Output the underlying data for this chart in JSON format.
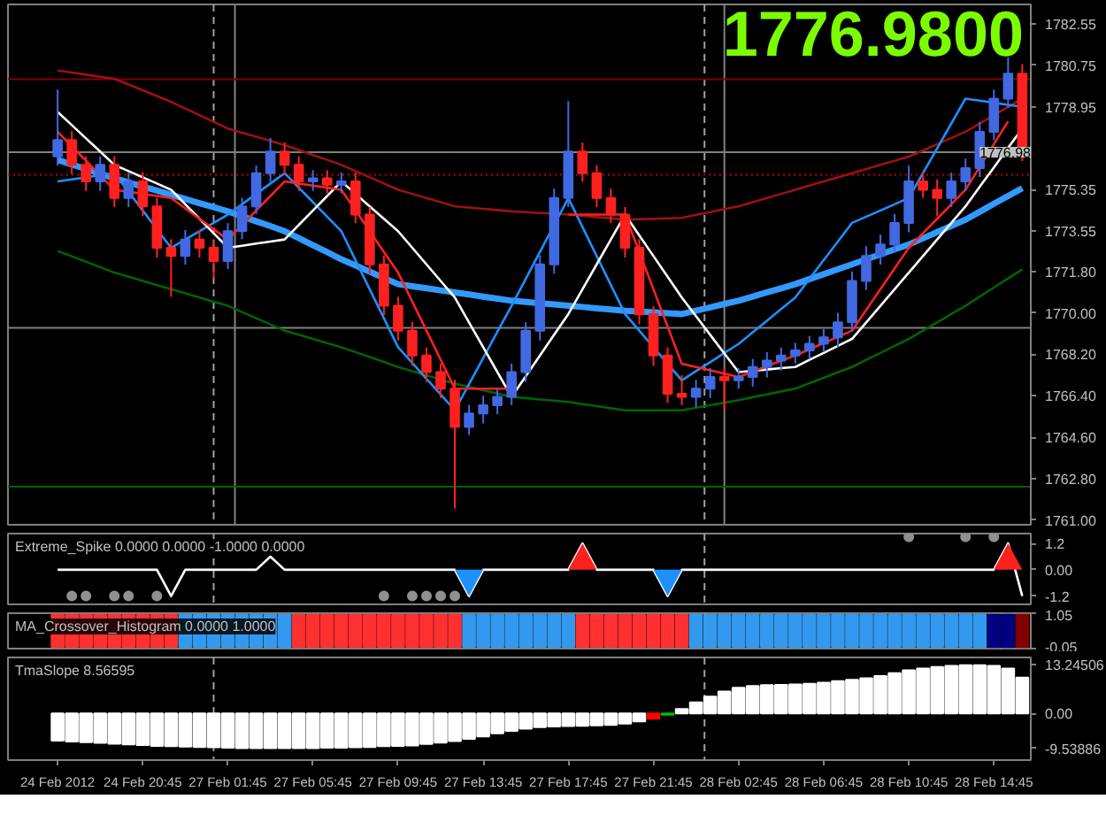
{
  "chart_data": [
    {
      "type": "candlestick",
      "categories": [
        null,
        null,
        null,
        null,
        null,
        null,
        null,
        null,
        null,
        null,
        null,
        null,
        null,
        null,
        null,
        null,
        null,
        null,
        null,
        null,
        null,
        null,
        null,
        null,
        null,
        null,
        null,
        null,
        null,
        null,
        null,
        null,
        null,
        null,
        null,
        null,
        null,
        null,
        null,
        null,
        null,
        null,
        null,
        null,
        null,
        null,
        null,
        null,
        null,
        null,
        null,
        null,
        null,
        null,
        null,
        null,
        null,
        null,
        null,
        null,
        null,
        null,
        null,
        null,
        null,
        null,
        null,
        null,
        null
      ],
      "ohlc": [
        [
          1776.8,
          1779.7,
          1776.4,
          1777.51
        ],
        [
          1777.51,
          1777.9,
          1776.03,
          1776.43
        ],
        [
          1776.43,
          1776.8,
          1775.3,
          1775.71
        ],
        [
          1775.71,
          1776.8,
          1775.3,
          1776.43
        ],
        [
          1776.43,
          1776.8,
          1774.6,
          1774.99
        ],
        [
          1774.99,
          1776.1,
          1774.6,
          1775.71
        ],
        [
          1775.71,
          1776.1,
          1774.2,
          1774.63
        ],
        [
          1774.63,
          1775.0,
          1772.4,
          1772.83
        ],
        [
          1772.83,
          1773.2,
          1770.7,
          1772.47
        ],
        [
          1772.47,
          1773.6,
          1772.1,
          1773.19
        ],
        [
          1773.19,
          1773.6,
          1772.4,
          1772.83
        ],
        [
          1772.83,
          1773.2,
          1771.5,
          1772.25
        ],
        [
          1772.25,
          1773.9,
          1771.9,
          1773.55
        ],
        [
          1773.55,
          1775.0,
          1773.2,
          1774.63
        ],
        [
          1774.63,
          1776.4,
          1774.3,
          1776.07
        ],
        [
          1776.07,
          1777.6,
          1775.7,
          1777.01
        ],
        [
          1777.01,
          1777.4,
          1776.0,
          1776.43
        ],
        [
          1776.43,
          1776.8,
          1775.3,
          1775.71
        ],
        [
          1775.71,
          1776.2,
          1775.3,
          1775.85
        ],
        [
          1775.85,
          1776.2,
          1775.2,
          1775.57
        ],
        [
          1775.57,
          1776.1,
          1775.2,
          1775.71
        ],
        [
          1775.71,
          1776.1,
          1773.9,
          1774.27
        ],
        [
          1774.27,
          1774.6,
          1771.7,
          1772.11
        ],
        [
          1772.11,
          1772.5,
          1769.9,
          1770.31
        ],
        [
          1770.31,
          1770.7,
          1768.8,
          1769.23
        ],
        [
          1769.23,
          1769.6,
          1767.7,
          1768.15
        ],
        [
          1768.15,
          1768.5,
          1767.0,
          1767.43
        ],
        [
          1767.43,
          1767.8,
          1766.3,
          1766.71
        ],
        [
          1766.71,
          1767.1,
          1761.5,
          1765.05
        ],
        [
          1765.05,
          1766.0,
          1764.7,
          1765.63
        ],
        [
          1765.63,
          1766.4,
          1765.2,
          1765.99
        ],
        [
          1765.99,
          1766.7,
          1765.6,
          1766.35
        ],
        [
          1766.35,
          1767.8,
          1766.0,
          1767.43
        ],
        [
          1767.43,
          1769.6,
          1767.0,
          1769.23
        ],
        [
          1769.23,
          1772.5,
          1768.8,
          1772.11
        ],
        [
          1772.11,
          1775.4,
          1771.7,
          1774.99
        ],
        [
          1774.99,
          1779.2,
          1774.6,
          1777.01
        ],
        [
          1777.01,
          1777.4,
          1775.7,
          1776.07
        ],
        [
          1776.07,
          1776.4,
          1774.6,
          1774.99
        ],
        [
          1774.99,
          1775.4,
          1773.9,
          1774.27
        ],
        [
          1774.27,
          1774.6,
          1772.4,
          1772.83
        ],
        [
          1772.83,
          1773.2,
          1769.5,
          1769.95
        ],
        [
          1769.95,
          1770.3,
          1767.7,
          1768.15
        ],
        [
          1768.15,
          1768.5,
          1766.1,
          1766.49
        ],
        [
          1766.49,
          1767.3,
          1766.0,
          1766.35
        ],
        [
          1766.35,
          1767.1,
          1765.9,
          1766.71
        ],
        [
          1766.71,
          1767.6,
          1766.3,
          1767.22
        ],
        [
          1767.22,
          1767.6,
          1765.8,
          1767.07
        ],
        [
          1767.07,
          1767.6,
          1766.7,
          1767.22
        ],
        [
          1767.22,
          1768.0,
          1766.8,
          1767.65
        ],
        [
          1767.65,
          1768.3,
          1767.2,
          1767.93
        ],
        [
          1767.93,
          1768.5,
          1767.5,
          1768.15
        ],
        [
          1768.15,
          1768.7,
          1767.8,
          1768.37
        ],
        [
          1768.37,
          1769.0,
          1768.0,
          1768.66
        ],
        [
          1768.66,
          1769.3,
          1768.3,
          1768.94
        ],
        [
          1768.94,
          1770.0,
          1768.5,
          1769.59
        ],
        [
          1769.59,
          1771.8,
          1769.2,
          1771.39
        ],
        [
          1771.39,
          1772.9,
          1771.0,
          1772.47
        ],
        [
          1772.47,
          1773.4,
          1772.1,
          1772.97
        ],
        [
          1772.97,
          1774.3,
          1772.6,
          1773.91
        ],
        [
          1773.91,
          1776.4,
          1773.5,
          1775.71
        ],
        [
          1775.71,
          1776.1,
          1775.0,
          1775.35
        ],
        [
          1775.35,
          1775.8,
          1774.2,
          1774.99
        ],
        [
          1774.99,
          1776.1,
          1774.6,
          1775.71
        ],
        [
          1775.71,
          1776.7,
          1775.3,
          1776.29
        ],
        [
          1776.29,
          1778.3,
          1775.9,
          1777.87
        ],
        [
          1777.87,
          1779.7,
          1777.5,
          1779.31
        ],
        [
          1779.31,
          1781.1,
          1778.9,
          1780.39
        ],
        [
          1780.39,
          1780.8,
          1776.6,
          1776.98
        ]
      ],
      "colors": [
        "#4169e1",
        "#ff2020",
        "#ff2020",
        "#4169e1",
        "#ff2020",
        "#4169e1",
        "#ff2020",
        "#ff2020",
        "#ff2020",
        "#4169e1",
        "#ff2020",
        "#ff2020",
        "#4169e1",
        "#4169e1",
        "#4169e1",
        "#4169e1",
        "#ff2020",
        "#ff2020",
        "#4169e1",
        "#ff2020",
        "#4169e1",
        "#ff2020",
        "#ff2020",
        "#ff2020",
        "#ff2020",
        "#ff2020",
        "#ff2020",
        "#ff2020",
        "#ff2020",
        "#4169e1",
        "#4169e1",
        "#4169e1",
        "#4169e1",
        "#4169e1",
        "#4169e1",
        "#4169e1",
        "#4169e1",
        "#ff2020",
        "#ff2020",
        "#ff2020",
        "#ff2020",
        "#ff2020",
        "#ff2020",
        "#ff2020",
        "#ff2020",
        "#4169e1",
        "#4169e1",
        "#ff2020",
        "#4169e1",
        "#4169e1",
        "#4169e1",
        "#4169e1",
        "#4169e1",
        "#4169e1",
        "#4169e1",
        "#4169e1",
        "#4169e1",
        "#4169e1",
        "#4169e1",
        "#4169e1",
        "#4169e1",
        "#ff2020",
        "#ff2020",
        "#4169e1",
        "#4169e1",
        "#4169e1",
        "#4169e1",
        "#4169e1",
        "#ff2020"
      ],
      "series": [
        {
          "type": "line",
          "color": "#a01010",
          "values": [
            1780.53,
            1780.44,
            1780.35,
            1780.26,
            1780.17,
            1779.92,
            1779.67,
            1779.42,
            1779.17,
            1778.88,
            1778.59,
            1778.3,
            1778.01,
            1777.83,
            1777.65,
            1777.47,
            1777.29,
            1777.08,
            1776.86,
            1776.65,
            1776.43,
            1776.16,
            1775.89,
            1775.62,
            1775.35,
            1775.17,
            1774.99,
            1774.81,
            1774.63,
            1774.58,
            1774.52,
            1774.47,
            1774.41,
            1774.38,
            1774.34,
            1774.31,
            1774.27,
            1774.22,
            1774.16,
            1774.11,
            1774.05,
            1774.07,
            1774.09,
            1774.11,
            1774.13,
            1774.26,
            1774.38,
            1774.51,
            1774.63,
            1774.81,
            1774.99,
            1775.17,
            1775.35,
            1775.53,
            1775.71,
            1775.89,
            1776.07,
            1776.25,
            1776.43,
            1776.61,
            1776.79,
            1777.06,
            1777.33,
            1777.6,
            1777.87,
            1778.23,
            1778.59,
            1778.95,
            1779.31
          ]
        },
        {
          "type": "line",
          "color": "#006400",
          "values": [
            1772.69,
            1772.46,
            1772.22,
            1771.99,
            1771.75,
            1771.57,
            1771.39,
            1771.21,
            1771.03,
            1770.85,
            1770.67,
            1770.49,
            1770.31,
            1770.04,
            1769.77,
            1769.5,
            1769.23,
            1769.05,
            1768.87,
            1768.69,
            1768.51,
            1768.3,
            1768.08,
            1767.87,
            1767.65,
            1767.47,
            1767.29,
            1767.11,
            1766.93,
            1766.79,
            1766.64,
            1766.5,
            1766.35,
            1766.3,
            1766.24,
            1766.19,
            1766.13,
            1766.04,
            1765.95,
            1765.86,
            1765.77,
            1765.77,
            1765.77,
            1765.77,
            1765.77,
            1765.88,
            1765.99,
            1766.1,
            1766.21,
            1766.34,
            1766.46,
            1766.59,
            1766.71,
            1766.95,
            1767.18,
            1767.42,
            1767.65,
            1767.96,
            1768.26,
            1768.57,
            1768.87,
            1769.23,
            1769.59,
            1769.95,
            1770.31,
            1770.71,
            1771.1,
            1771.5,
            1771.89
          ]
        },
        {
          "type": "line",
          "color": "#3399ff",
          "values": [
            1776.65,
            1776.45,
            1776.25,
            1776.05,
            1775.85,
            1775.67,
            1775.49,
            1775.31,
            1775.13,
            1774.95,
            1774.77,
            1774.59,
            1774.41,
            1774.2,
            1773.98,
            1773.77,
            1773.55,
            1773.25,
            1772.94,
            1772.64,
            1772.33,
            1772.06,
            1771.79,
            1771.52,
            1771.25,
            1771.16,
            1771.07,
            1770.98,
            1770.89,
            1770.8,
            1770.71,
            1770.62,
            1770.53,
            1770.48,
            1770.42,
            1770.37,
            1770.31,
            1770.26,
            1770.2,
            1770.15,
            1770.09,
            1770.06,
            1770.02,
            1769.99,
            1769.95,
            1770.1,
            1770.24,
            1770.39,
            1770.53,
            1770.71,
            1770.89,
            1771.07,
            1771.25,
            1771.47,
            1771.68,
            1771.9,
            1772.11,
            1772.33,
            1772.54,
            1772.76,
            1772.97,
            1773.24,
            1773.51,
            1773.78,
            1774.05,
            1774.39,
            1774.74,
            1775.08,
            1775.42
          ]
        },
        {
          "type": "line",
          "color": "#1e90ff",
          "values": [
            1775.71,
            1775.8,
            1775.89,
            1775.98,
            1776.07,
            1775.26,
            1774.45,
            1773.64,
            1772.83,
            1773.19,
            1773.55,
            1773.91,
            1774.27,
            1774.72,
            1775.17,
            1775.62,
            1776.07,
            1775.44,
            1774.81,
            1774.18,
            1773.55,
            1772.29,
            1771.03,
            1769.77,
            1768.51,
            1767.83,
            1767.14,
            1766.46,
            1765.77,
            1766.91,
            1768.04,
            1769.18,
            1770.31,
            1771.48,
            1772.65,
            1773.82,
            1774.99,
            1773.73,
            1772.47,
            1771.21,
            1769.95,
            1769.23,
            1768.51,
            1767.79,
            1767.07,
            1767.47,
            1767.86,
            1768.26,
            1768.65,
            1769.16,
            1769.66,
            1770.17,
            1770.67,
            1771.48,
            1772.29,
            1773.1,
            1773.91,
            1774.18,
            1774.45,
            1774.72,
            1774.99,
            1776.07,
            1777.15,
            1778.23,
            1779.31,
            1779.22,
            1779.13,
            1779.04,
            1778.95
          ]
        },
        {
          "type": "line",
          "color": "#ffffff",
          "values": [
            1778.73,
            1778.16,
            1777.58,
            1777.01,
            1776.43,
            1776.16,
            1775.89,
            1775.62,
            1775.35,
            1774.72,
            1774.09,
            1773.46,
            1772.83,
            1772.92,
            1773.01,
            1773.1,
            1773.19,
            1773.82,
            1774.45,
            1775.08,
            1775.71,
            1775.17,
            1774.63,
            1774.09,
            1773.55,
            1772.83,
            1772.11,
            1771.39,
            1770.67,
            1769.59,
            1768.51,
            1767.43,
            1766.35,
            1767.25,
            1768.15,
            1769.05,
            1769.95,
            1771.03,
            1772.11,
            1773.19,
            1774.27,
            1773.37,
            1772.47,
            1771.57,
            1770.67,
            1769.86,
            1769.05,
            1768.24,
            1767.43,
            1767.49,
            1767.54,
            1767.6,
            1767.65,
            1767.96,
            1768.26,
            1768.57,
            1768.87,
            1769.59,
            1770.31,
            1771.03,
            1771.75,
            1772.47,
            1773.19,
            1773.91,
            1774.63,
            1775.48,
            1776.32,
            1777.17,
            1778.01
          ]
        },
        {
          "type": "line",
          "color": "#ff2020",
          "values": [
            1777.87,
            1777.24,
            1776.61,
            1775.98,
            1775.35,
            1775.26,
            1775.17,
            1775.08,
            1774.99,
            1774.54,
            1774.09,
            1773.64,
            1773.19,
            1773.82,
            1774.45,
            1775.08,
            1775.71,
            1775.62,
            1775.53,
            1775.44,
            1775.35,
            1774.45,
            1773.55,
            1772.65,
            1771.75,
            1770.49,
            1769.23,
            1767.97,
            1766.71,
            1766.71,
            1766.71,
            1766.71,
            1766.71,
            null,
            null,
            null,
            1774.27,
            1774.27,
            1774.27,
            1774.27,
            1774.27,
            1772.65,
            1771.03,
            1769.41,
            1767.79,
            1767.65,
            1767.51,
            1767.36,
            1767.22,
            1767.45,
            1767.69,
            1767.92,
            1768.15,
            1768.42,
            1768.69,
            1768.96,
            1769.23,
            1770.13,
            1771.03,
            1771.93,
            1772.83,
            1773.46,
            1774.09,
            1774.72,
            1775.35,
            1776.34,
            1777.33,
            1778.32,
            null
          ]
        }
      ],
      "ylim": [
        1760.8,
        1783.4
      ],
      "yticks": [
        1782.55,
        1780.75,
        1778.95,
        1775.35,
        1773.55,
        {
          "value": 1771.8,
          "label": "1771.80"
        },
        {
          "value": 1770,
          "label": "1770.00"
        },
        {
          "value": 1768.2,
          "label": "1768.20"
        },
        {
          "value": 1766.4,
          "label": "1766.40"
        },
        {
          "value": 1764.6,
          "label": "1764.60"
        },
        {
          "value": 1762.8,
          "label": "1762.80"
        },
        {
          "value": 1761,
          "label": "1761.00"
        }
      ],
      "tick_labels": "y",
      "ref_lines": [
        {
          "axis": "y",
          "value": 1780.15,
          "color": "#800000"
        },
        {
          "axis": "y",
          "value": 1776.98,
          "label": "1776.98",
          "color": "#808080"
        },
        {
          "axis": "y",
          "value": 1776.0,
          "color": "#c00000",
          "line_style": "dotted"
        },
        {
          "axis": "y",
          "value": 1769.35,
          "color": "#808080"
        },
        {
          "axis": "y",
          "value": 1762.45,
          "color": "#006400"
        }
      ],
      "annotations": [
        "1776.9800"
      ]
    },
    {
      "type": "line",
      "title": "Extreme_Spike 0.0000 0.0000 -1.0000 0.0000",
      "categories": [
        null,
        null,
        null,
        null,
        null,
        null,
        null,
        null,
        null,
        null,
        null,
        null,
        null,
        null,
        null,
        null,
        null,
        null,
        null,
        null,
        null,
        null,
        null,
        null,
        null,
        null,
        null,
        null,
        null,
        null,
        null,
        null,
        null,
        null,
        null,
        null,
        null,
        null,
        null,
        null,
        null,
        null,
        null,
        null,
        null,
        null,
        null,
        null,
        null,
        null,
        null,
        null,
        null,
        null,
        null,
        null,
        null,
        null,
        null,
        null,
        null,
        null,
        null,
        null,
        null,
        null,
        null,
        null,
        null
      ],
      "series": [
        {
          "type": "line",
          "color": "#ffffff",
          "values": [
            0,
            0,
            0,
            0,
            0,
            0,
            0,
            0,
            -1.2,
            0,
            0,
            0,
            0,
            0,
            0,
            0.6,
            0,
            0,
            0,
            0,
            0,
            0,
            0,
            0,
            0,
            0,
            0,
            0,
            0,
            -1.2,
            0,
            0,
            0,
            0,
            0,
            0,
            0,
            1.2,
            0,
            0,
            0,
            0,
            0,
            -1.2,
            0,
            0,
            0,
            0,
            0,
            0,
            0,
            0,
            0,
            0,
            0,
            0,
            0,
            0,
            0,
            0,
            0,
            0,
            0,
            0,
            0,
            0,
            0,
            1.2,
            -1.2
          ]
        },
        {
          "type": "area",
          "color": "#1e90ff",
          "values": [
            null,
            null,
            null,
            null,
            null,
            null,
            null,
            null,
            null,
            null,
            null,
            null,
            null,
            null,
            null,
            null,
            null,
            null,
            null,
            null,
            null,
            null,
            null,
            null,
            null,
            null,
            null,
            null,
            0,
            -1.2,
            0,
            null,
            null,
            null,
            null,
            null,
            null,
            null,
            null,
            null,
            null,
            null,
            0,
            -1.2,
            0,
            null,
            null,
            null,
            null,
            null,
            null,
            null,
            null,
            null,
            null,
            null,
            null,
            null,
            null,
            null,
            null,
            null,
            null,
            null,
            null,
            null,
            null,
            null,
            null
          ]
        },
        {
          "type": "area",
          "color": "#ff2020",
          "values": [
            null,
            null,
            null,
            null,
            null,
            null,
            null,
            null,
            null,
            null,
            null,
            null,
            null,
            null,
            null,
            null,
            null,
            null,
            null,
            null,
            null,
            null,
            null,
            null,
            null,
            null,
            null,
            null,
            null,
            null,
            null,
            null,
            null,
            null,
            null,
            null,
            0,
            1.2,
            0,
            null,
            null,
            null,
            null,
            null,
            null,
            null,
            null,
            null,
            null,
            null,
            null,
            null,
            null,
            null,
            null,
            null,
            null,
            null,
            null,
            null,
            null,
            null,
            null,
            null,
            null,
            null,
            0,
            1.2,
            0
          ]
        },
        {
          "type": "scatter",
          "color": "#909090",
          "marker": "circle",
          "values": [
            null,
            -1.2,
            -1.2,
            null,
            -1.2,
            -1.2,
            null,
            -1.2,
            null,
            null,
            null,
            null,
            null,
            null,
            null,
            null,
            null,
            null,
            null,
            null,
            null,
            null,
            null,
            -1.2,
            null,
            -1.2,
            -1.2,
            -1.2,
            -1.2,
            null,
            null,
            null,
            null,
            null,
            null,
            null,
            null,
            null,
            null,
            null,
            null,
            null,
            null,
            null,
            null,
            null,
            null,
            null,
            null,
            null,
            null,
            null,
            null,
            null,
            null,
            null,
            null,
            null,
            null,
            null,
            1.5,
            null,
            null,
            null,
            1.5,
            null,
            1.5,
            null,
            null
          ]
        }
      ],
      "ylim": [
        -1.58,
        1.65
      ],
      "yticks": [
        1.2,
        {
          "value": 0,
          "label": "0.00"
        },
        -1.2
      ],
      "tick_labels": "y"
    },
    {
      "type": "bar",
      "title": "MA_Crossover_Histogram 0.0000 1.0000",
      "categories": [
        null,
        null,
        null,
        null,
        null,
        null,
        null,
        null,
        null,
        null,
        null,
        null,
        null,
        null,
        null,
        null,
        null,
        null,
        null,
        null,
        null,
        null,
        null,
        null,
        null,
        null,
        null,
        null,
        null,
        null,
        null,
        null,
        null,
        null,
        null,
        null,
        null,
        null,
        null,
        null,
        null,
        null,
        null,
        null,
        null,
        null,
        null,
        null,
        null,
        null,
        null,
        null,
        null,
        null,
        null,
        null,
        null,
        null,
        null,
        null,
        null,
        null,
        null,
        null,
        null,
        null,
        null,
        null,
        null
      ],
      "values": [
        1,
        1,
        1,
        1,
        1,
        1,
        1,
        1,
        1,
        1,
        1,
        1,
        1,
        1,
        1,
        1,
        1,
        1,
        1,
        1,
        1,
        1,
        1,
        1,
        1,
        1,
        1,
        1,
        1,
        1,
        1,
        1,
        1,
        1,
        1,
        1,
        1,
        1,
        1,
        1,
        1,
        1,
        1,
        1,
        1,
        1,
        1,
        1,
        1,
        1,
        1,
        1,
        1,
        1,
        1,
        1,
        1,
        1,
        1,
        1,
        1,
        1,
        1,
        1,
        1,
        1,
        1,
        1,
        1
      ],
      "colors": [
        "#ff3030",
        "#ff3030",
        "#ff3030",
        "#ff3030",
        "#ff3030",
        "#ff3030",
        "#ff3030",
        "#ff3030",
        "#ff3030",
        "#3399ee",
        "#3399ee",
        "#3399ee",
        "#3399ee",
        "#3399ee",
        "#3399ee",
        "#3399ee",
        "#3399ee",
        "#ff3030",
        "#ff3030",
        "#ff3030",
        "#ff3030",
        "#ff3030",
        "#ff3030",
        "#ff3030",
        "#ff3030",
        "#ff3030",
        "#ff3030",
        "#ff3030",
        "#ff3030",
        "#3399ee",
        "#3399ee",
        "#3399ee",
        "#3399ee",
        "#3399ee",
        "#3399ee",
        "#3399ee",
        "#3399ee",
        "#ff3030",
        "#ff3030",
        "#ff3030",
        "#ff3030",
        "#ff3030",
        "#ff3030",
        "#ff3030",
        "#ff3030",
        "#3399ee",
        "#3399ee",
        "#3399ee",
        "#3399ee",
        "#3399ee",
        "#3399ee",
        "#3399ee",
        "#3399ee",
        "#3399ee",
        "#3399ee",
        "#3399ee",
        "#3399ee",
        "#3399ee",
        "#3399ee",
        "#3399ee",
        "#3399ee",
        "#3399ee",
        "#3399ee",
        "#3399ee",
        "#3399ee",
        "#3399ee",
        "#000080",
        "#000080",
        "#800000"
      ],
      "ylim": [
        -0.05,
        1.05
      ],
      "yticks": [
        1.05,
        -0.05
      ],
      "tick_labels": "y"
    },
    {
      "type": "bar",
      "title": "TmaSlope 8.56595",
      "categories": [
        "24 Feb 2012",
        null,
        null,
        null,
        null,
        null,
        "24 Feb 20:45",
        null,
        null,
        null,
        null,
        null,
        "27 Feb 01:45",
        null,
        null,
        null,
        null,
        null,
        "27 Feb 05:45",
        null,
        null,
        null,
        null,
        null,
        "27 Feb 09:45",
        null,
        null,
        null,
        null,
        null,
        "27 Feb 13:45",
        null,
        null,
        null,
        null,
        null,
        "27 Feb 17:45",
        null,
        null,
        null,
        null,
        null,
        "27 Feb 21:45",
        null,
        null,
        null,
        null,
        null,
        "28 Feb 02:45",
        null,
        null,
        null,
        null,
        null,
        "28 Feb 06:45",
        null,
        null,
        null,
        null,
        null,
        "28 Feb 10:45",
        null,
        null,
        null,
        null,
        null,
        "28 Feb 14:45",
        null,
        null
      ],
      "values": [
        -7.5,
        -7.7,
        -7.9,
        -8.1,
        -8.3,
        -8.5,
        -8.7,
        -8.9,
        -9.0,
        -9.1,
        -9.2,
        -9.3,
        -9.4,
        -9.5,
        -9.5,
        -9.5,
        -9.5,
        -9.5,
        -9.5,
        -9.4,
        -9.4,
        -9.3,
        -9.2,
        -9.0,
        -8.9,
        -8.8,
        -8.4,
        -8.0,
        -7.6,
        -7.0,
        -6.3,
        -5.5,
        -4.8,
        -4.2,
        -3.8,
        -3.6,
        -3.5,
        -3.4,
        -3.3,
        -3.2,
        -2.8,
        -2.2,
        -1.5,
        -0.4,
        1.2,
        3.0,
        4.6,
        6.0,
        7.0,
        7.5,
        7.7,
        7.8,
        7.9,
        8.1,
        8.4,
        8.8,
        9.2,
        9.6,
        10.2,
        11.0,
        11.8,
        12.3,
        12.7,
        13.0,
        13.2,
        13.2,
        13.0,
        12.3,
        9.8
      ],
      "colors": [
        "#ffffff",
        "#ffffff",
        "#ffffff",
        "#ffffff",
        "#ffffff",
        "#ffffff",
        "#ffffff",
        "#ffffff",
        "#ffffff",
        "#ffffff",
        "#ffffff",
        "#ffffff",
        "#ffffff",
        "#ffffff",
        "#ffffff",
        "#ffffff",
        "#ffffff",
        "#ffffff",
        "#ffffff",
        "#ffffff",
        "#ffffff",
        "#ffffff",
        "#ffffff",
        "#ffffff",
        "#ffffff",
        "#ffffff",
        "#ffffff",
        "#ffffff",
        "#ffffff",
        "#ffffff",
        "#ffffff",
        "#ffffff",
        "#ffffff",
        "#ffffff",
        "#ffffff",
        "#ffffff",
        "#ffffff",
        "#ffffff",
        "#ffffff",
        "#ffffff",
        "#ffffff",
        "#ffffff",
        "#ff0000",
        "#00c000",
        "#ffffff",
        "#ffffff",
        "#ffffff",
        "#ffffff",
        "#ffffff",
        "#ffffff",
        "#ffffff",
        "#ffffff",
        "#ffffff",
        "#ffffff",
        "#ffffff",
        "#ffffff",
        "#ffffff",
        "#ffffff",
        "#ffffff",
        "#ffffff",
        "#ffffff",
        "#ffffff",
        "#ffffff",
        "#ffffff",
        "#ffffff",
        "#ffffff",
        "#ffffff",
        "#ffffff",
        "#ffffff"
      ],
      "ylim": [
        -12.8,
        15.3
      ],
      "yticks": [
        13.24506,
        {
          "value": 0,
          "label": "0.00"
        },
        -9.53886
      ]
    }
  ]
}
